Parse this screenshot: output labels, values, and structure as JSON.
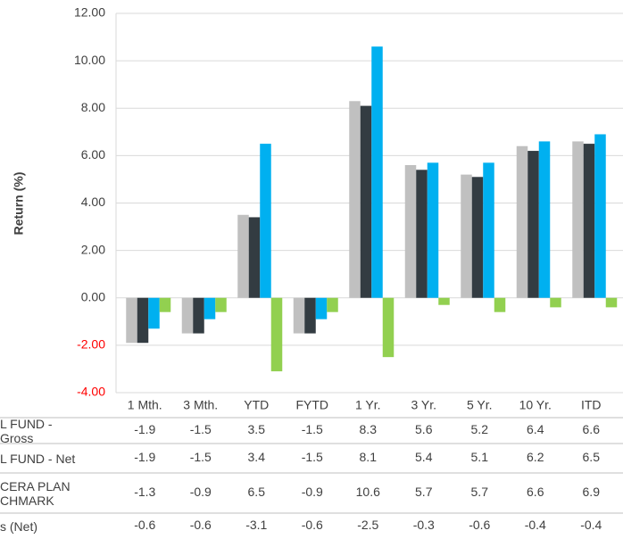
{
  "chart_data": {
    "type": "bar",
    "y_axis_label": "Return (%)",
    "categories": [
      "1 Mth.",
      "3 Mth.",
      "YTD",
      "FYTD",
      "1 Yr.",
      "3 Yr.",
      "5 Yr.",
      "10 Yr.",
      "ITD"
    ],
    "series": [
      {
        "name": "L FUND - Gross",
        "color": "#c0c0c0",
        "values": [
          -1.9,
          -1.5,
          3.5,
          -1.5,
          8.3,
          5.6,
          5.2,
          6.4,
          6.6
        ]
      },
      {
        "name": "L FUND - Net",
        "color": "#333c42",
        "values": [
          -1.9,
          -1.5,
          3.4,
          -1.5,
          8.1,
          5.4,
          5.1,
          6.2,
          6.5
        ]
      },
      {
        "name": "CERA PLAN CHMARK",
        "color": "#00b0f0",
        "values": [
          -1.3,
          -0.9,
          6.5,
          -0.9,
          10.6,
          5.7,
          5.7,
          6.6,
          6.9
        ]
      },
      {
        "name": "s (Net)",
        "color": "#92d050",
        "values": [
          -0.6,
          -0.6,
          -3.1,
          -0.6,
          -2.5,
          -0.3,
          -0.6,
          -0.4,
          -0.4
        ]
      }
    ],
    "ylim": [
      -4,
      12
    ],
    "yticks": [
      {
        "value": -4,
        "label": "-4.00"
      },
      {
        "value": -2,
        "label": "-2.00"
      },
      {
        "value": 0,
        "label": "0.00"
      },
      {
        "value": 2,
        "label": "2.00"
      },
      {
        "value": 4,
        "label": "4.00"
      },
      {
        "value": 6,
        "label": "6.00"
      },
      {
        "value": 8,
        "label": "8.00"
      },
      {
        "value": 10,
        "label": "10.00"
      },
      {
        "value": 12,
        "label": "12.00"
      }
    ],
    "grid": true
  }
}
